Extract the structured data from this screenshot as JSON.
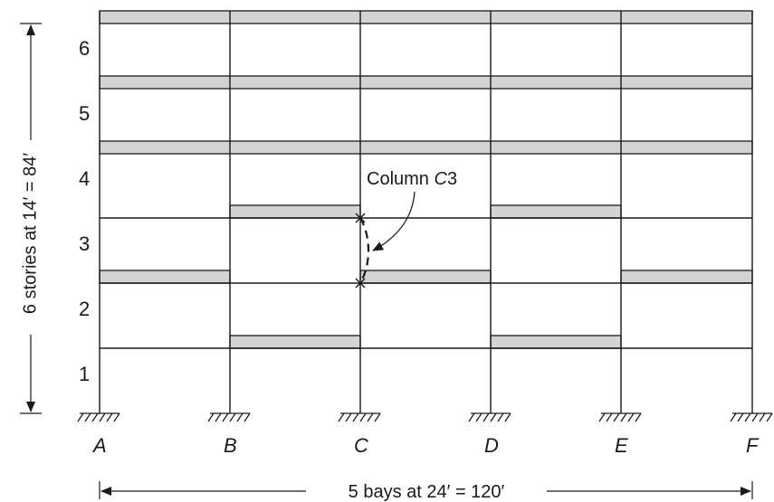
{
  "column_lines": [
    "A",
    "B",
    "C",
    "D",
    "E",
    "F"
  ],
  "stories": [
    "1",
    "2",
    "3",
    "4",
    "5",
    "6"
  ],
  "vertical_dimension": "6 stories at 14′ = 84′",
  "horizontal_dimension": "5 bays at 24′ = 120′",
  "callout": {
    "text_main": "Column ",
    "text_italic": "C",
    "text_number": "3"
  }
}
